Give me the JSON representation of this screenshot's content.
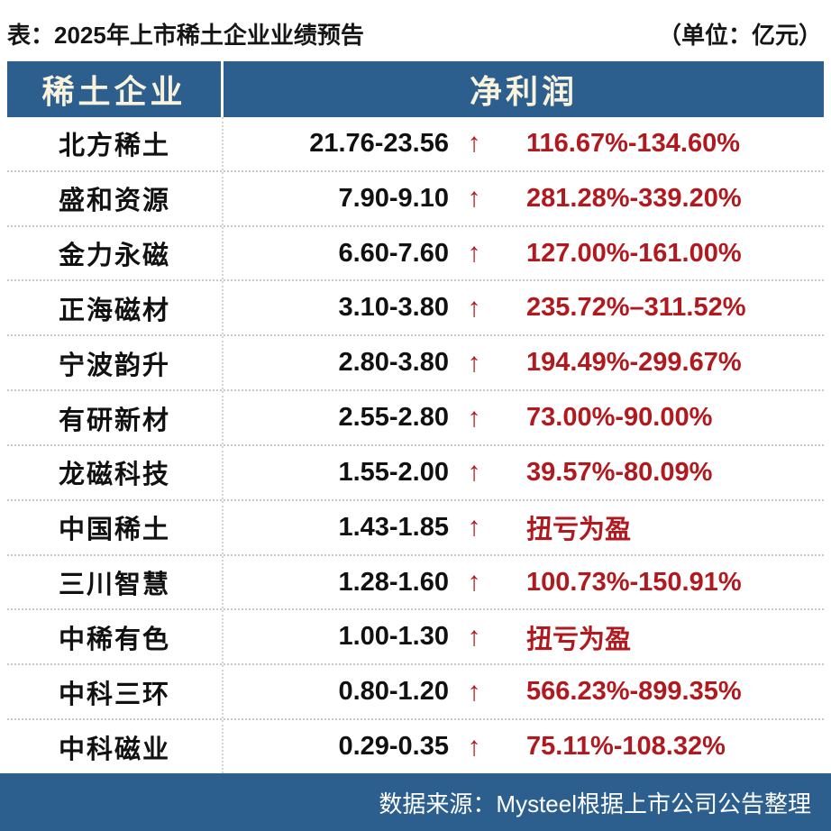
{
  "title_bar": {
    "title": "表：2025年上市稀土企业业绩预告",
    "unit": "（单位：亿元）"
  },
  "chart_data": {
    "type": "table",
    "title": "2025年上市稀土企业业绩预告",
    "unit": "亿元",
    "columns": [
      "稀土企业",
      "净利润"
    ],
    "rows": [
      {
        "company": "北方稀土",
        "profit_range": "21.76-23.56",
        "direction": "↑",
        "yoy_change": "116.67%-134.60%"
      },
      {
        "company": "盛和资源",
        "profit_range": "7.90-9.10",
        "direction": "↑",
        "yoy_change": "281.28%-339.20%"
      },
      {
        "company": "金力永磁",
        "profit_range": "6.60-7.60",
        "direction": "↑",
        "yoy_change": "127.00%-161.00%"
      },
      {
        "company": "正海磁材",
        "profit_range": "3.10-3.80",
        "direction": "↑",
        "yoy_change": "235.72%–311.52%"
      },
      {
        "company": "宁波韵升",
        "profit_range": "2.80-3.80",
        "direction": "↑",
        "yoy_change": "194.49%-299.67%"
      },
      {
        "company": "有研新材",
        "profit_range": "2.55-2.80",
        "direction": "↑",
        "yoy_change": "73.00%-90.00%"
      },
      {
        "company": "龙磁科技",
        "profit_range": "1.55-2.00",
        "direction": "↑",
        "yoy_change": "39.57%-80.09%"
      },
      {
        "company": "中国稀土",
        "profit_range": "1.43-1.85",
        "direction": "↑",
        "yoy_change": "扭亏为盈"
      },
      {
        "company": "三川智慧",
        "profit_range": "1.28-1.60",
        "direction": "↑",
        "yoy_change": "100.73%-150.91%"
      },
      {
        "company": "中稀有色",
        "profit_range": "1.00-1.30",
        "direction": "↑",
        "yoy_change": "扭亏为盈"
      },
      {
        "company": "中科三环",
        "profit_range": "0.80-1.20",
        "direction": "↑",
        "yoy_change": "566.23%-899.35%"
      },
      {
        "company": "中科磁业",
        "profit_range": "0.29-0.35",
        "direction": "↑",
        "yoy_change": "75.11%-108.32%"
      }
    ]
  },
  "footer": {
    "source": "数据来源：Mysteel根据上市公司公告整理"
  },
  "colors": {
    "header_bg": "#2d5f8e",
    "header_fg": "#f9f2dc",
    "accent_red": "#b2191e",
    "text": "#111111",
    "divider_dotted": "#c8c8c8"
  }
}
